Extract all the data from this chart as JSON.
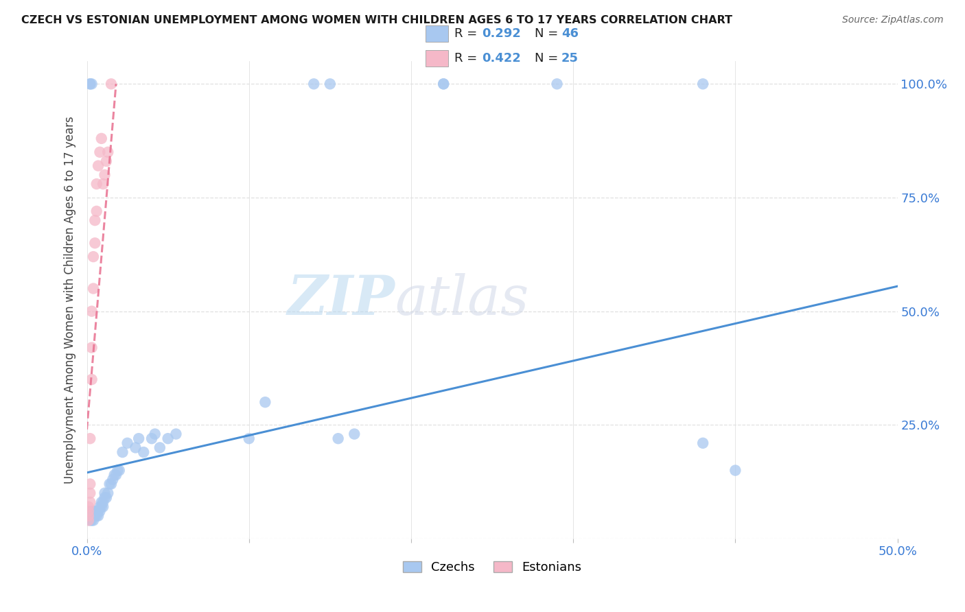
{
  "title": "CZECH VS ESTONIAN UNEMPLOYMENT AMONG WOMEN WITH CHILDREN AGES 6 TO 17 YEARS CORRELATION CHART",
  "source": "Source: ZipAtlas.com",
  "ylabel": "Unemployment Among Women with Children Ages 6 to 17 years",
  "xlim": [
    0.0,
    0.5
  ],
  "ylim": [
    0.0,
    1.05
  ],
  "xticks": [
    0.0,
    0.1,
    0.2,
    0.3,
    0.4,
    0.5
  ],
  "yticks": [
    0.0,
    0.25,
    0.5,
    0.75,
    1.0
  ],
  "xticklabels": [
    "0.0%",
    "",
    "",
    "",
    "",
    "50.0%"
  ],
  "yticklabels_right": [
    "",
    "25.0%",
    "50.0%",
    "75.0%",
    "100.0%"
  ],
  "watermark_zip": "ZIP",
  "watermark_atlas": "atlas",
  "czech_R": 0.292,
  "czech_N": 46,
  "estonian_R": 0.422,
  "estonian_N": 25,
  "czech_color": "#a8c8f0",
  "estonian_color": "#f5b8c8",
  "czech_line_color": "#4a8fd4",
  "estonian_line_color": "#e87090",
  "background_color": "#ffffff",
  "grid_color": "#e0e0e0",
  "czech_x": [
    0.002,
    0.002,
    0.003,
    0.003,
    0.003,
    0.004,
    0.004,
    0.005,
    0.005,
    0.006,
    0.006,
    0.007,
    0.007,
    0.008,
    0.008,
    0.009,
    0.009,
    0.01,
    0.01,
    0.011,
    0.011,
    0.012,
    0.013,
    0.014,
    0.015,
    0.016,
    0.017,
    0.018,
    0.019,
    0.02,
    0.022,
    0.025,
    0.03,
    0.032,
    0.035,
    0.04,
    0.042,
    0.045,
    0.05,
    0.055,
    0.1,
    0.11,
    0.155,
    0.165,
    0.38,
    0.4
  ],
  "czech_y": [
    0.04,
    0.05,
    0.04,
    0.05,
    0.06,
    0.04,
    0.05,
    0.05,
    0.06,
    0.05,
    0.06,
    0.05,
    0.06,
    0.06,
    0.07,
    0.07,
    0.08,
    0.07,
    0.08,
    0.09,
    0.1,
    0.09,
    0.1,
    0.12,
    0.12,
    0.13,
    0.14,
    0.14,
    0.15,
    0.15,
    0.19,
    0.21,
    0.2,
    0.22,
    0.19,
    0.22,
    0.23,
    0.2,
    0.22,
    0.23,
    0.22,
    0.3,
    0.22,
    0.23,
    0.21,
    0.15
  ],
  "estonian_x": [
    0.001,
    0.001,
    0.001,
    0.001,
    0.002,
    0.002,
    0.002,
    0.002,
    0.003,
    0.003,
    0.003,
    0.004,
    0.004,
    0.005,
    0.005,
    0.006,
    0.006,
    0.007,
    0.008,
    0.009,
    0.01,
    0.011,
    0.012,
    0.013,
    0.015
  ],
  "estonian_y": [
    0.04,
    0.05,
    0.06,
    0.07,
    0.08,
    0.1,
    0.12,
    0.22,
    0.35,
    0.42,
    0.5,
    0.55,
    0.62,
    0.65,
    0.7,
    0.72,
    0.78,
    0.82,
    0.85,
    0.88,
    0.78,
    0.8,
    0.83,
    0.85,
    1.0
  ],
  "czech_top_x": [
    0.002,
    0.002,
    0.003,
    0.14,
    0.15,
    0.22,
    0.22,
    0.29,
    0.38
  ],
  "czech_top_y": [
    1.0,
    1.0,
    1.0,
    1.0,
    1.0,
    1.0,
    1.0,
    1.0,
    1.0
  ]
}
